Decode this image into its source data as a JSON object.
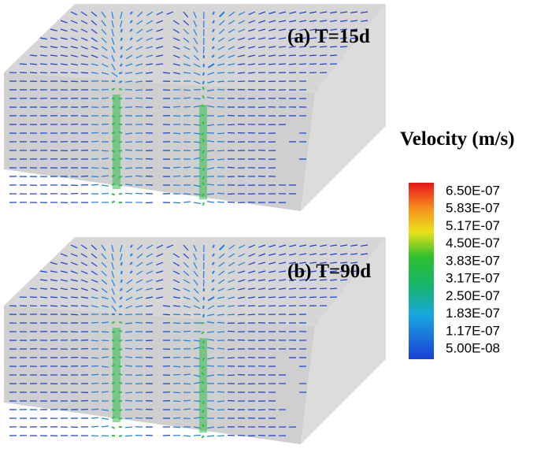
{
  "panels": [
    {
      "title": "(a) T=15d"
    },
    {
      "title": "(b) T=90d"
    }
  ],
  "colorbar": {
    "title": "Velocity (m/s)",
    "labels": [
      "6.50E-07",
      "5.83E-07",
      "5.17E-07",
      "4.50E-07",
      "3.83E-07",
      "3.17E-07",
      "2.50E-07",
      "1.83E-07",
      "1.17E-07",
      "5.00E-08"
    ]
  }
}
